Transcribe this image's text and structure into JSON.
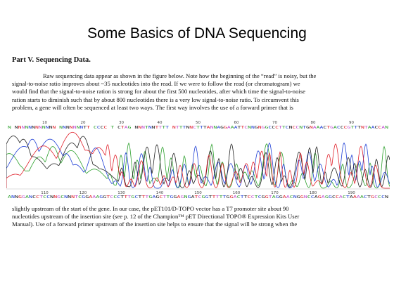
{
  "slide": {
    "title": "Some Basics of DNA Sequencing"
  },
  "document": {
    "section_heading": "Part V. Sequencing Data.",
    "paragraph_1": [
      "Raw sequencing data appear as shown in the figure below. Note how the beginning of the “read” is noisy, but the",
      "signal-to-noise ratio improves about ~35 nucleotides into the read. If we were to follow the read (or chromatogram) we",
      "would find that the signal-to-noise ration is strong for about the first 500 nucleotides, after which time the signal-to-noise",
      "ration starts to diminish such that by about 800 nucleotides there is a very low signal-to-noise ratio. To circumvent this",
      "problem, a gene will often be sequenced at least two ways. The first way involves the use of a forward primer that is"
    ],
    "paragraph_2": [
      "slightly upstream of the start of the gene. In our case, the pET101/D-TOPO vector has a T7 promoter site about 90",
      "nucleotides upstream of the insertion site (see p. 12 of the Champion™ pET Directional TOPO® Expression Kits User",
      "Manual). Use of a forward primer upstream of the insertion site helps to ensure that the signal will be strong when the"
    ]
  },
  "chromatogram": {
    "top_sequence": "N NNNNNNNNNNNN NNNNNNNTT CCCC T CTAG NNNTNNTTTT NTTTNNCTTTANNAGGAAATTCNNGNGGCCCTTCNCCNTGNAAACTGACCCGTTTNTAACCAN",
    "top_positions": [
      "10",
      "20",
      "30",
      "40",
      "50",
      "60",
      "70",
      "80",
      "90"
    ],
    "bottom_sequence": "ANNGGANCCTCCNNGCNNNTCGGAAAGGTCCCTTTGCTTTGAGCTTGGAGNGATCGGTTTTTGGACTTCCTCGGTAGGAACNGGNCCAGAGGCCACTAAAACTGCCCN",
    "bottom_positions": [
      "110",
      "120",
      "130",
      "140",
      "150",
      "160",
      "170",
      "180",
      "190"
    ],
    "trace_colors": {
      "A": "#2ca02c",
      "C": "#1f3fd6",
      "G": "#222222",
      "T": "#e0202a"
    },
    "sequence_colors": [
      "#2ca02c",
      "#1f3fd6",
      "#222222",
      "#e0202a",
      "#c04fd0"
    ]
  }
}
